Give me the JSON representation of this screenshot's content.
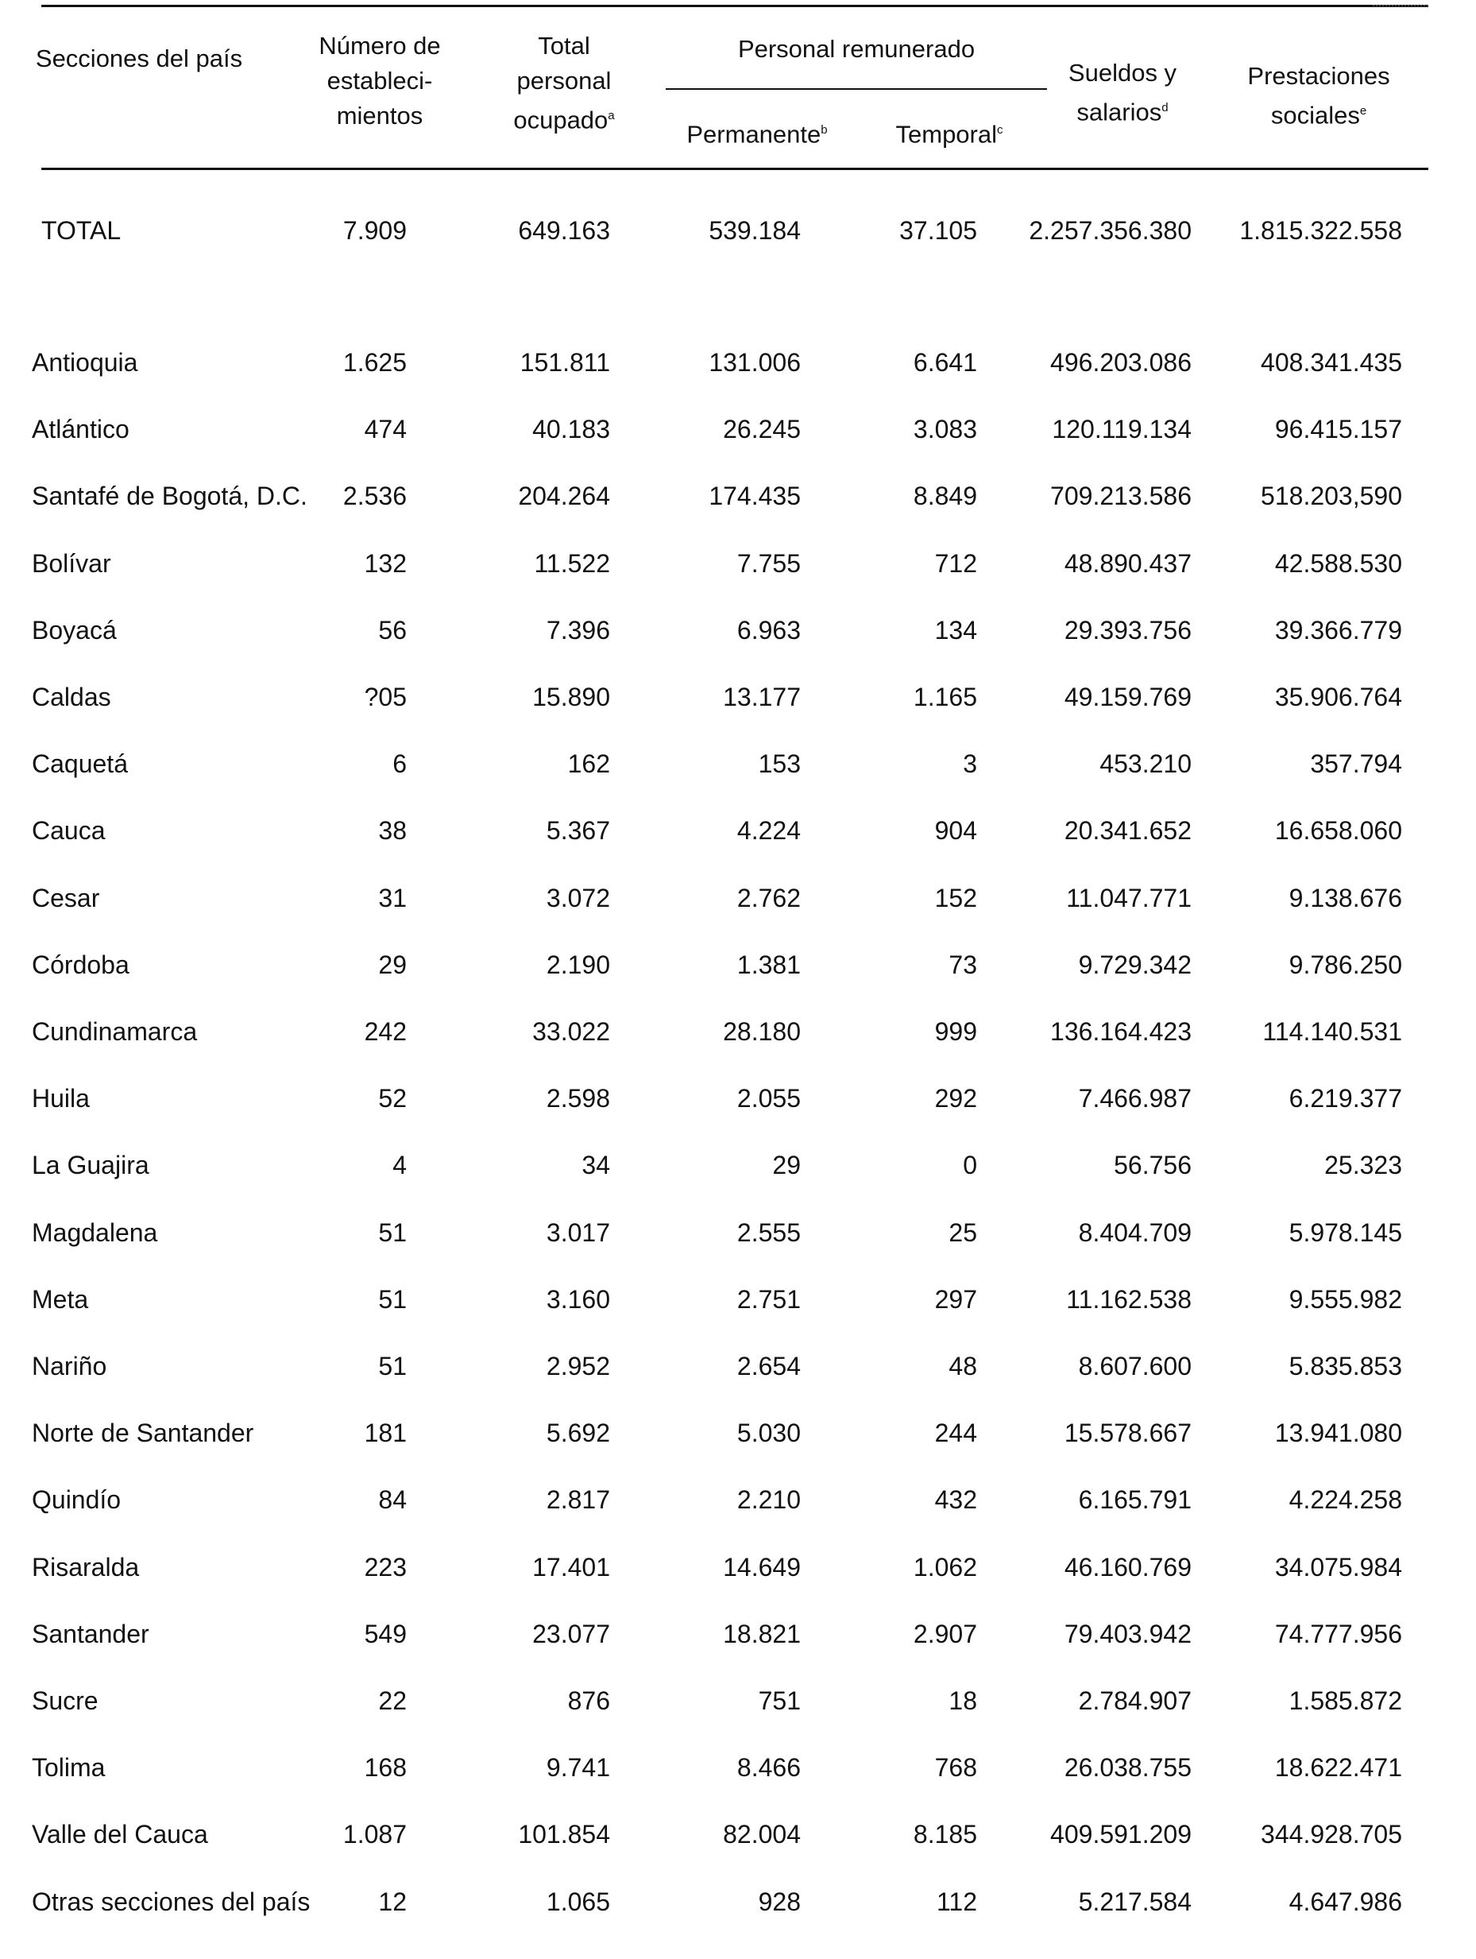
{
  "table": {
    "headers": {
      "secciones": "Secciones del país",
      "numero": "Número de estableci- mientos",
      "total": "Total personal ocupado",
      "total_sup": "a",
      "personal": "Personal remunerado",
      "permanente": "Permanente",
      "permanente_sup": "b",
      "temporal": "Temporal",
      "temporal_sup": "c",
      "sueldos": "Sueldos y salarios",
      "sueldos_sup": "d",
      "prestaciones": "Prestaciones sociales",
      "prestaciones_sup": "e"
    },
    "total_row": {
      "name": "TOTAL",
      "numero": "7.909",
      "total": "649.163",
      "permanente": "539.184",
      "temporal": "37.105",
      "sueldos": "2.257.356.380",
      "prestaciones": "1.815.322.558"
    },
    "rows": [
      {
        "name": "Antioquia",
        "numero": "1.625",
        "total": "151.811",
        "permanente": "131.006",
        "temporal": "6.641",
        "sueldos": "496.203.086",
        "prestaciones": "408.341.435"
      },
      {
        "name": "Atlántico",
        "numero": "474",
        "total": "40.183",
        "permanente": "26.245",
        "temporal": "3.083",
        "sueldos": "120.119.134",
        "prestaciones": "96.415.157"
      },
      {
        "name": "Santafé de Bogotá, D.C.",
        "numero": "2.536",
        "total": "204.264",
        "permanente": "174.435",
        "temporal": "8.849",
        "sueldos": "709.213.586",
        "prestaciones": "518.203,590"
      },
      {
        "name": "Bolívar",
        "numero": "132",
        "total": "11.522",
        "permanente": "7.755",
        "temporal": "712",
        "sueldos": "48.890.437",
        "prestaciones": "42.588.530"
      },
      {
        "name": "Boyacá",
        "numero": "56",
        "total": "7.396",
        "permanente": "6.963",
        "temporal": "134",
        "sueldos": "29.393.756",
        "prestaciones": "39.366.779"
      },
      {
        "name": "Caldas",
        "numero": "?05",
        "total": "15.890",
        "permanente": "13.177",
        "temporal": "1.165",
        "sueldos": "49.159.769",
        "prestaciones": "35.906.764"
      },
      {
        "name": "Caquetá",
        "numero": "6",
        "total": "162",
        "permanente": "153",
        "temporal": "3",
        "sueldos": "453.210",
        "prestaciones": "357.794"
      },
      {
        "name": "Cauca",
        "numero": "38",
        "total": "5.367",
        "permanente": "4.224",
        "temporal": "904",
        "sueldos": "20.341.652",
        "prestaciones": "16.658.060"
      },
      {
        "name": "Cesar",
        "numero": "31",
        "total": "3.072",
        "permanente": "2.762",
        "temporal": "152",
        "sueldos": "11.047.771",
        "prestaciones": "9.138.676"
      },
      {
        "name": "Córdoba",
        "numero": "29",
        "total": "2.190",
        "permanente": "1.381",
        "temporal": "73",
        "sueldos": "9.729.342",
        "prestaciones": "9.786.250"
      },
      {
        "name": "Cundinamarca",
        "numero": "242",
        "total": "33.022",
        "permanente": "28.180",
        "temporal": "999",
        "sueldos": "136.164.423",
        "prestaciones": "114.140.531"
      },
      {
        "name": "Huila",
        "numero": "52",
        "total": "2.598",
        "permanente": "2.055",
        "temporal": "292",
        "sueldos": "7.466.987",
        "prestaciones": "6.219.377"
      },
      {
        "name": "La Guajira",
        "numero": "4",
        "total": "34",
        "permanente": "29",
        "temporal": "0",
        "sueldos": "56.756",
        "prestaciones": "25.323"
      },
      {
        "name": "Magdalena",
        "numero": "51",
        "total": "3.017",
        "permanente": "2.555",
        "temporal": "25",
        "sueldos": "8.404.709",
        "prestaciones": "5.978.145"
      },
      {
        "name": "Meta",
        "numero": "51",
        "total": "3.160",
        "permanente": "2.751",
        "temporal": "297",
        "sueldos": "11.162.538",
        "prestaciones": "9.555.982"
      },
      {
        "name": "Nariño",
        "numero": "51",
        "total": "2.952",
        "permanente": "2.654",
        "temporal": "48",
        "sueldos": "8.607.600",
        "prestaciones": "5.835.853"
      },
      {
        "name": "Norte de Santander",
        "numero": "181",
        "total": "5.692",
        "permanente": "5.030",
        "temporal": "244",
        "sueldos": "15.578.667",
        "prestaciones": "13.941.080"
      },
      {
        "name": "Quindío",
        "numero": "84",
        "total": "2.817",
        "permanente": "2.210",
        "temporal": "432",
        "sueldos": "6.165.791",
        "prestaciones": "4.224.258"
      },
      {
        "name": "Risaralda",
        "numero": "223",
        "total": "17.401",
        "permanente": "14.649",
        "temporal": "1.062",
        "sueldos": "46.160.769",
        "prestaciones": "34.075.984"
      },
      {
        "name": "Santander",
        "numero": "549",
        "total": "23.077",
        "permanente": "18.821",
        "temporal": "2.907",
        "sueldos": "79.403.942",
        "prestaciones": "74.777.956"
      },
      {
        "name": "Sucre",
        "numero": "22",
        "total": "876",
        "permanente": "751",
        "temporal": "18",
        "sueldos": "2.784.907",
        "prestaciones": "1.585.872"
      },
      {
        "name": "Tolima",
        "numero": "168",
        "total": "9.741",
        "permanente": "8.466",
        "temporal": "768",
        "sueldos": "26.038.755",
        "prestaciones": "18.622.471"
      },
      {
        "name": "Valle del Cauca",
        "numero": "1.087",
        "total": "101.854",
        "permanente": "82.004",
        "temporal": "8.185",
        "sueldos": "409.591.209",
        "prestaciones": "344.928.705"
      },
      {
        "name": "Otras secciones del país",
        "numero": "12",
        "total": "1.065",
        "permanente": "928",
        "temporal": "112",
        "sueldos": "5.217.584",
        "prestaciones": "4.647.986"
      }
    ]
  }
}
